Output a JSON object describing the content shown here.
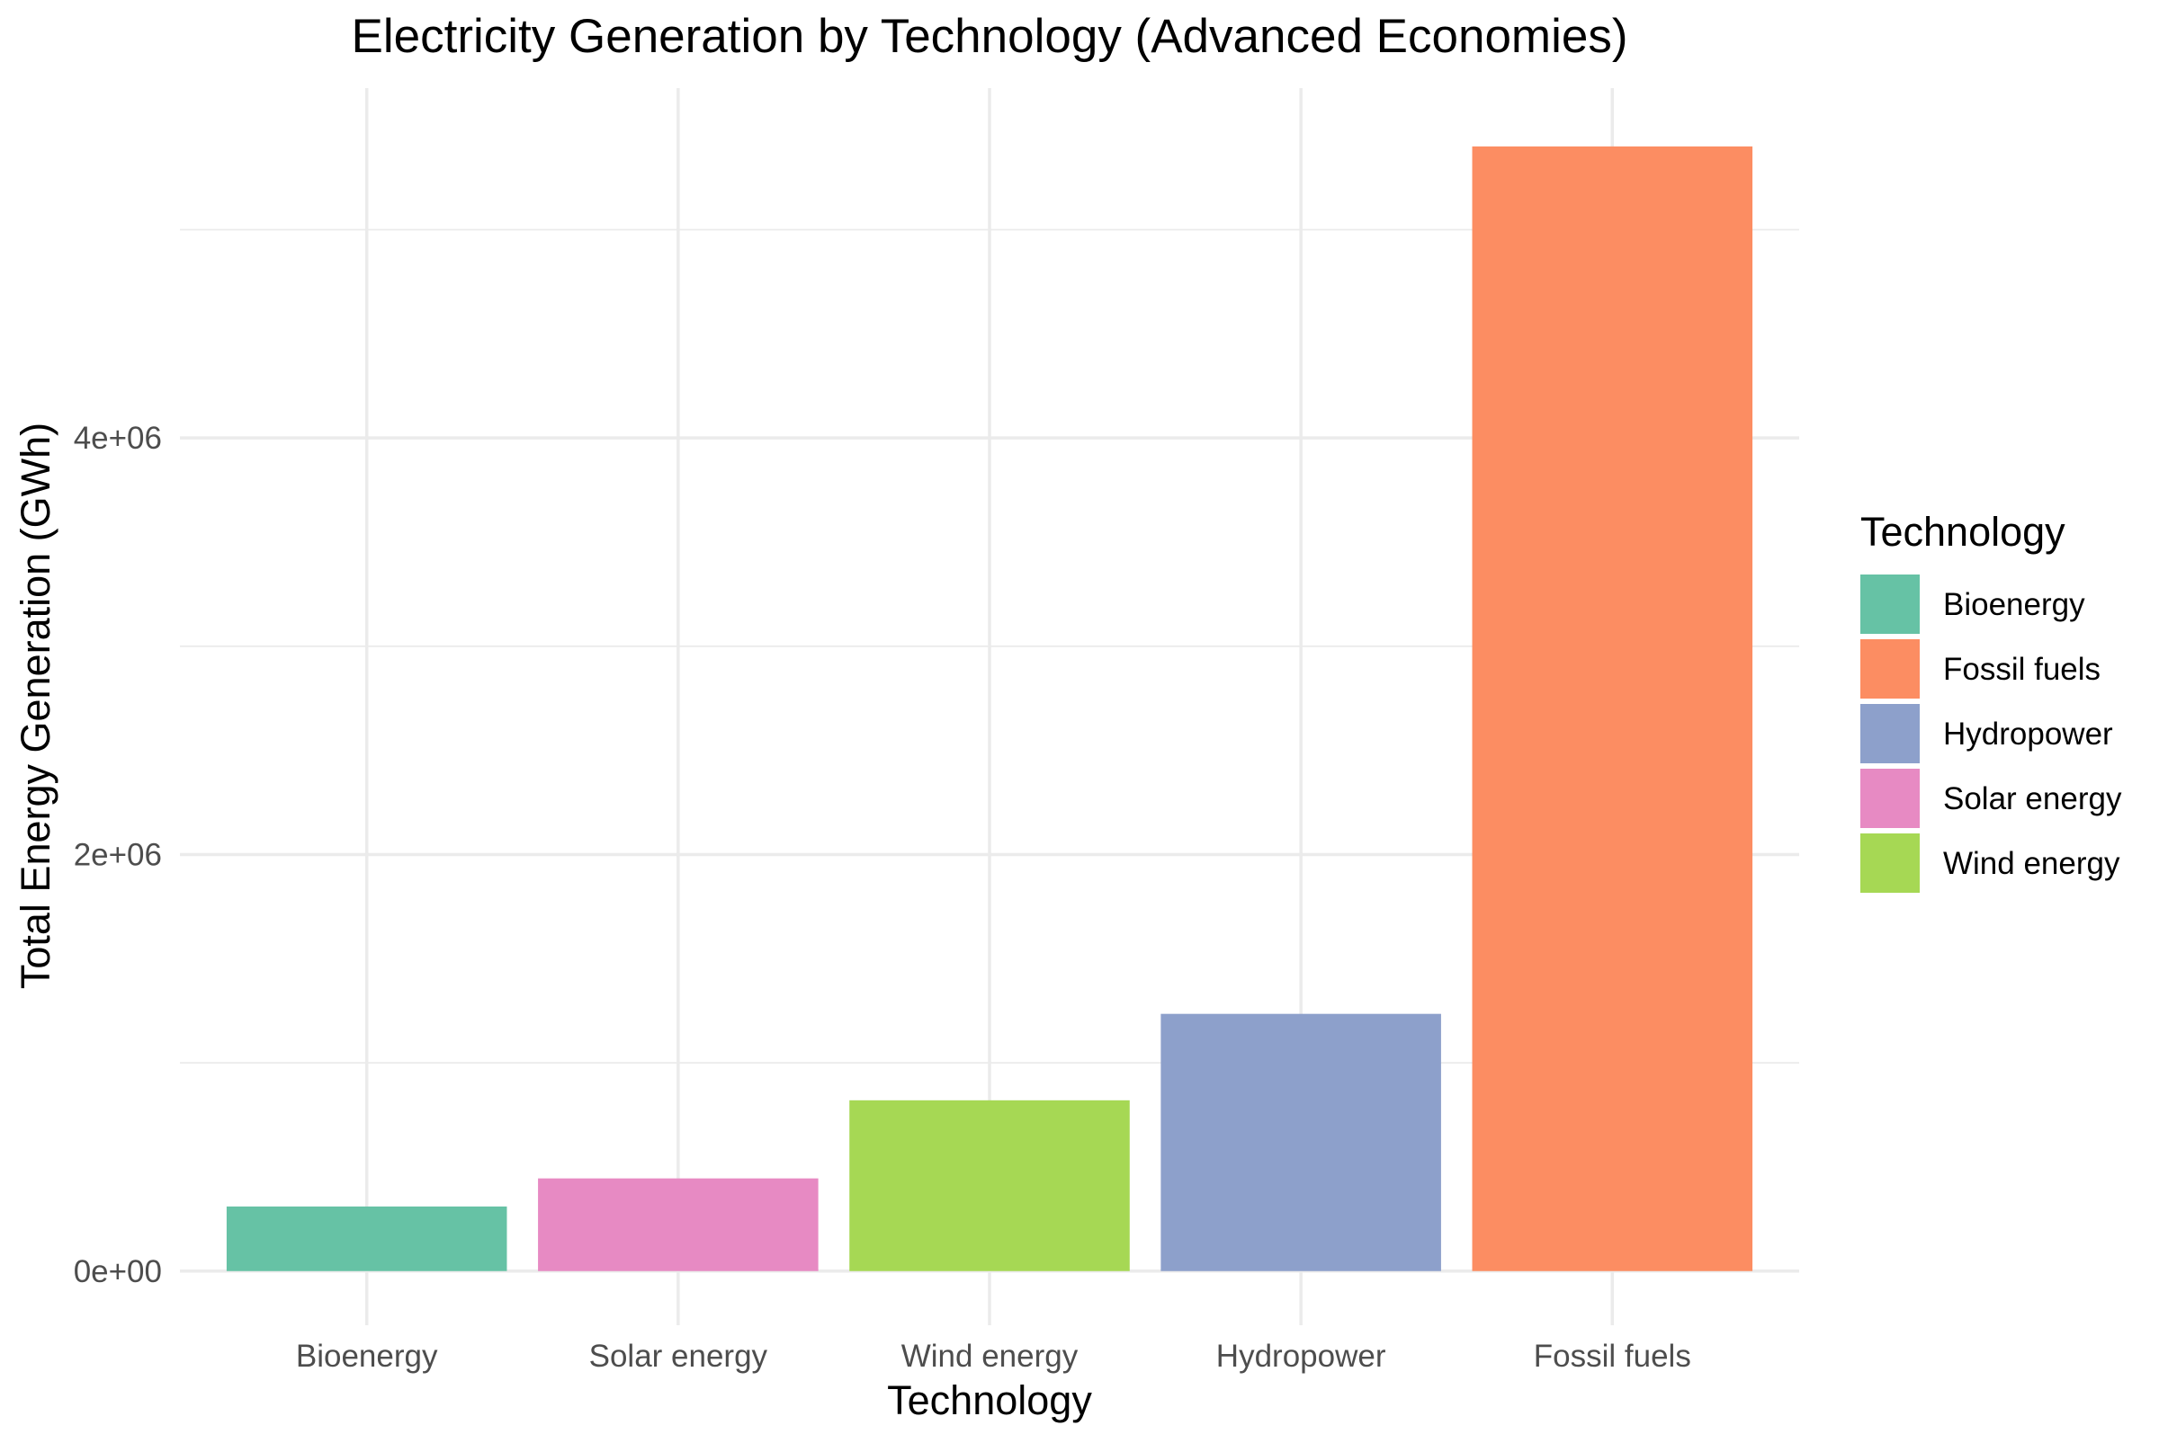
{
  "chart_data": {
    "type": "bar",
    "title": "Electricity Generation by Technology (Advanced Economies)",
    "xlabel": "Technology",
    "ylabel": "Total Energy Generation (GWh)",
    "categories": [
      "Bioenergy",
      "Solar energy",
      "Wind energy",
      "Hydropower",
      "Fossil fuels"
    ],
    "values": [
      310000,
      445000,
      820000,
      1235000,
      5400000
    ],
    "colors": [
      "#66c2a5",
      "#e78ac3",
      "#a6d854",
      "#8da0cb",
      "#fc8d62"
    ],
    "ylim": [
      -260000,
      5680000
    ],
    "y_ticks": [
      {
        "value": 0,
        "label": "0e+00"
      },
      {
        "value": 2000000,
        "label": "2e+06"
      },
      {
        "value": 4000000,
        "label": "4e+06"
      }
    ],
    "y_minor_ticks": [
      1000000,
      3000000,
      5000000
    ],
    "grid": true,
    "legend": {
      "title": "Technology",
      "position": "right",
      "entries": [
        {
          "label": "Bioenergy",
          "color": "#66c2a5"
        },
        {
          "label": "Fossil fuels",
          "color": "#fc8d62"
        },
        {
          "label": "Hydropower",
          "color": "#8da0cb"
        },
        {
          "label": "Solar energy",
          "color": "#e78ac3"
        },
        {
          "label": "Wind energy",
          "color": "#a6d854"
        }
      ]
    }
  }
}
